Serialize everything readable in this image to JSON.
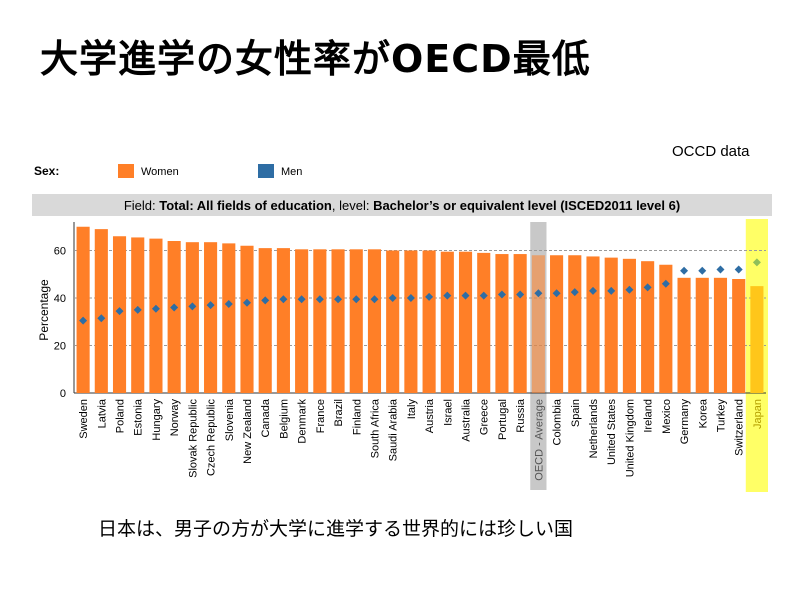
{
  "slide": {
    "title": "大学進学の女性率がOECD最低",
    "source_note": "OCCD data",
    "caption": "日本は、男子の方が大学に進学する世界的には珍しい国"
  },
  "colors": {
    "women": "#ff7f27",
    "men": "#2e6da4",
    "field_bar": "#d9d9d9",
    "oecd_band": "#c8c8c8",
    "japan_band": "#ffff66",
    "japan_bar": "#ffc61a",
    "japan_marker": "#8fbf5a"
  },
  "legend": {
    "sex_label": "Sex:",
    "women_label": "Women",
    "men_label": "Men"
  },
  "field_banner": {
    "part1": "Field: ",
    "part2": "Total: All fields of education",
    "part3": ", level: ",
    "part4": "Bachelor’s or equivalent level (ISCED2011 level 6)"
  },
  "chart_data": {
    "type": "bar",
    "title": "Field: Total: All fields of education, level: Bachelor’s or equivalent level (ISCED2011 level 6)",
    "xlabel": "",
    "ylabel": "Percentage",
    "ylim": [
      0,
      72
    ],
    "yticks": [
      0,
      20,
      40,
      60
    ],
    "grid": true,
    "legend_position": "top",
    "categories": [
      "Sweden",
      "Latvia",
      "Poland",
      "Estonia",
      "Hungary",
      "Norway",
      "Slovak Republic",
      "Czech Republic",
      "Slovenia",
      "New Zealand",
      "Canada",
      "Belgium",
      "Denmark",
      "France",
      "Brazil",
      "Finland",
      "South Africa",
      "Saudi Arabia",
      "Italy",
      "Austria",
      "Israel",
      "Australia",
      "Greece",
      "Portugal",
      "Russia",
      "OECD - Average",
      "Colombia",
      "Spain",
      "Netherlands",
      "United States",
      "United Kingdom",
      "Ireland",
      "Mexico",
      "Germany",
      "Korea",
      "Turkey",
      "Switzerland",
      "Japan"
    ],
    "highlight": {
      "OECD - Average": "oecd",
      "Japan": "japan"
    },
    "series": [
      {
        "name": "Women",
        "mark": "bar",
        "values": [
          70,
          69,
          66,
          65.5,
          65,
          64,
          63.5,
          63.5,
          63,
          62,
          61,
          61,
          60.5,
          60.5,
          60.5,
          60.5,
          60.5,
          60,
          60,
          60,
          59.5,
          59.5,
          59,
          58.5,
          58.5,
          58,
          58,
          58,
          57.5,
          57,
          56.5,
          55.5,
          54,
          48.5,
          48.5,
          48.5,
          48,
          45
        ]
      },
      {
        "name": "Men",
        "mark": "diamond",
        "values": [
          30.5,
          31.5,
          34.5,
          35,
          35.5,
          36,
          36.5,
          37,
          37.5,
          38,
          39,
          39.5,
          39.5,
          39.5,
          39.5,
          39.5,
          39.5,
          40,
          40,
          40.5,
          41,
          41,
          41,
          41.5,
          41.5,
          42,
          42,
          42.5,
          43,
          43,
          43.5,
          44.5,
          46,
          51.5,
          51.5,
          52,
          52,
          55
        ]
      }
    ]
  }
}
